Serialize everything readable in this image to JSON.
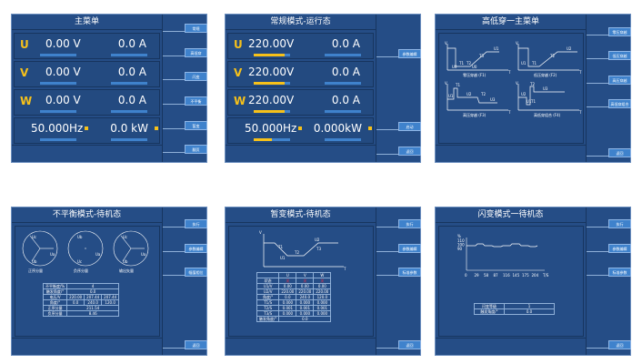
{
  "colors": {
    "panel_bg": "#254d86",
    "button": "#3f82cc",
    "accent": "#f6c11a",
    "status_red": "#e0324a"
  },
  "panels": [
    {
      "title": "主菜单",
      "buttons": [
        "常规",
        "高低穿",
        "闪变",
        "不平衡",
        "暂变",
        "翻页"
      ],
      "rows": [
        {
          "phase": "U",
          "voltage": "0.00 V",
          "current": "0.0 A"
        },
        {
          "phase": "V",
          "voltage": "0.00 V",
          "current": "0.0 A"
        },
        {
          "phase": "W",
          "voltage": "0.00 V",
          "current": "0.0 A"
        }
      ],
      "freq": "50.000Hz",
      "power": "0.0 kW",
      "voltage_level": 0,
      "freq_level": 0
    },
    {
      "title": "常规模式-运行态",
      "buttons": [
        "参数编辑",
        "启动",
        "返回"
      ],
      "rows": [
        {
          "phase": "U",
          "voltage": "220.00V",
          "current": "0.0 A"
        },
        {
          "phase": "V",
          "voltage": "220.00V",
          "current": "0.0 A"
        },
        {
          "phase": "W",
          "voltage": "220.00V",
          "current": "0.0 A"
        }
      ],
      "freq": "50.000Hz",
      "power": "0.000kW",
      "voltage_level": 0.85,
      "freq_level": 0.5
    },
    {
      "title": "高低穿一主菜单",
      "buttons": [
        "零压穿越",
        "低压穿越",
        "高压穿越",
        "高低穿组合",
        "返回"
      ],
      "diagrams": [
        {
          "caption": "零压穿越 (F1)",
          "labels": [
            "V",
            "U0",
            "T1",
            "T2",
            "U0",
            "T3",
            "U1",
            "T"
          ]
        },
        {
          "caption": "低压穿越 (F2)",
          "labels": [
            "V",
            "U1",
            "T1",
            "T2",
            "U2",
            "T"
          ]
        },
        {
          "caption": "高压穿越 (F3)",
          "labels": [
            "V",
            "U1",
            "T1",
            "U2",
            "T2",
            "U3",
            "T"
          ]
        },
        {
          "caption": "高低穿组合 (F4)",
          "labels": [
            "V",
            "U2",
            "T2",
            "U1",
            "T1",
            "U3",
            "T"
          ]
        }
      ]
    },
    {
      "title": "不平衡模式-待机态",
      "buttons": [
        "执行",
        "参数编辑",
        "幅值相位",
        "返回"
      ],
      "circles": [
        {
          "caption": "正序分量",
          "labels": [
            "Uc",
            "Ua",
            "Ub"
          ]
        },
        {
          "caption": "负序分量",
          "labels": [
            "Ub",
            "Ua",
            "Uc"
          ]
        },
        {
          "caption": "输出矢量",
          "labels": [
            "Uc",
            "Ua",
            "Ub"
          ]
        }
      ],
      "table": [
        [
          "不平衡度/%",
          "4"
        ],
        [
          "触发角度/°",
          "0.0"
        ],
        [
          "电压/V",
          "220.00",
          "207.44",
          "207.44"
        ],
        [
          "角度/°",
          "0.0",
          "240.0",
          "120.0"
        ],
        [
          "正序分量",
          "211.54"
        ],
        [
          "负序分量",
          "8.46"
        ]
      ]
    },
    {
      "title": "暂变模式-待机态",
      "buttons": [
        "执行",
        "参数编辑",
        "标准参数",
        "返回"
      ],
      "diagram_labels": [
        "V",
        "T1",
        "U1",
        "T2",
        "U2",
        "T3",
        "T"
      ],
      "table_header": [
        "",
        "U",
        "V",
        "W"
      ],
      "table": [
        [
          "状态",
          "关",
          "关",
          "关"
        ],
        [
          "U1/V",
          "0.00",
          "0.00",
          "0.00"
        ],
        [
          "U2/V",
          "220.00",
          "220.00",
          "220.00"
        ],
        [
          "角度/°",
          "0.0",
          "240.0",
          "120.0"
        ],
        [
          "T1/S",
          "0.000",
          "0.000",
          "0.000"
        ],
        [
          "T2/S",
          "0.001",
          "0.001",
          "0.001"
        ],
        [
          "T3/S",
          "0.000",
          "0.000",
          "0.000"
        ],
        [
          "触发角度/°",
          "0.0"
        ]
      ]
    },
    {
      "title": "闪变模式一待机态",
      "buttons": [
        "执行",
        "参数编辑",
        "标准参数",
        "返回"
      ],
      "chart": {
        "ylabel": "%",
        "yticks": [
          "110",
          "100",
          "90"
        ],
        "xticks": [
          "0",
          "29",
          "58",
          "87",
          "116",
          "145",
          "175",
          "204"
        ],
        "xlabel": "T/S"
      },
      "table": [
        [
          "闪变等级",
          "1"
        ],
        [
          "触发角度/°",
          "0.0"
        ]
      ]
    }
  ]
}
